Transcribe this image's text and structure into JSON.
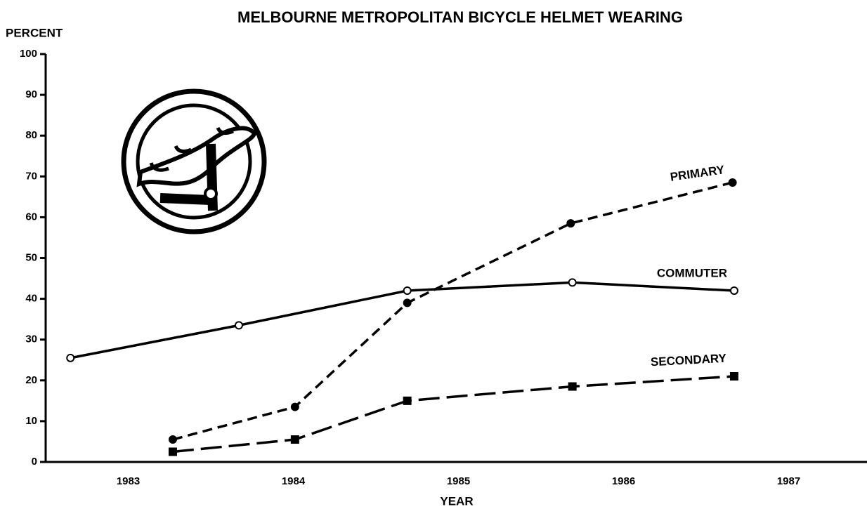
{
  "chart_data": {
    "type": "line",
    "title": "MELBOURNE METROPOLITAN BICYCLE HELMET WEARING",
    "y_label": "PERCENT",
    "x_label": "YEAR",
    "xlim": [
      1983,
      1988
    ],
    "xticks": [
      {
        "value": 1983.5,
        "label": "1983"
      },
      {
        "value": 1984.5,
        "label": "1984"
      },
      {
        "value": 1985.5,
        "label": "1985"
      },
      {
        "value": 1986.5,
        "label": "1986"
      },
      {
        "value": 1987.5,
        "label": "1987"
      }
    ],
    "ylim": [
      0,
      100
    ],
    "yticks": [
      0,
      10,
      20,
      30,
      40,
      50,
      60,
      70,
      80,
      90,
      100
    ],
    "grid": false,
    "series": [
      {
        "name": "PRIMARY",
        "color": "#000000",
        "style": "dashed",
        "marker": "filled-circle",
        "x": [
          1983.77,
          1984.51,
          1985.19,
          1986.18,
          1987.16
        ],
        "values": [
          5.5,
          13.5,
          39,
          58.5,
          68.5
        ]
      },
      {
        "name": "COMMUTER",
        "color": "#000000",
        "style": "solid",
        "marker": "open-circle",
        "x": [
          1983.15,
          1984.17,
          1985.19,
          1986.19,
          1987.17
        ],
        "values": [
          25.5,
          33.5,
          42,
          44,
          42
        ]
      },
      {
        "name": "SECONDARY",
        "color": "#000000",
        "style": "long-dashed",
        "marker": "filled-square",
        "x": [
          1983.77,
          1984.51,
          1985.19,
          1986.19,
          1987.17
        ],
        "values": [
          2.5,
          5.5,
          15,
          18.5,
          21
        ]
      }
    ]
  }
}
